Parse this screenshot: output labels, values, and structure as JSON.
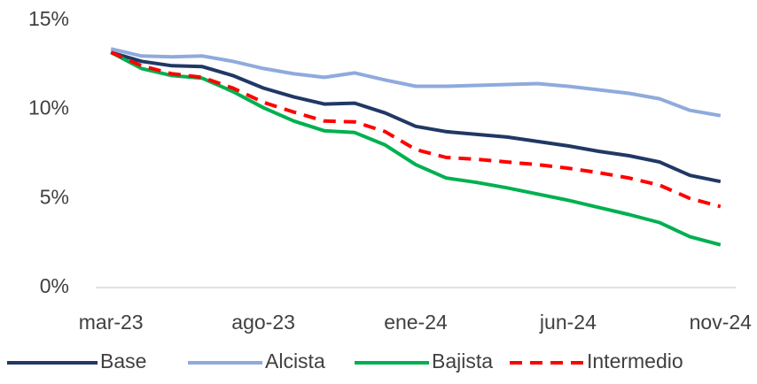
{
  "chart_data": {
    "type": "line",
    "categories": [
      "mar-23",
      null,
      null,
      null,
      null,
      "ago-23",
      null,
      null,
      null,
      null,
      "ene-24",
      null,
      null,
      null,
      null,
      "jun-24",
      null,
      null,
      null,
      null,
      "nov-24"
    ],
    "series": [
      {
        "name": "Base",
        "color": "#203864",
        "dash": false,
        "values": [
          13.2,
          12.7,
          12.45,
          12.4,
          11.9,
          11.2,
          10.7,
          10.3,
          10.35,
          9.8,
          9.05,
          8.75,
          8.6,
          8.45,
          8.2,
          7.95,
          7.65,
          7.4,
          7.05,
          6.3,
          5.95
        ]
      },
      {
        "name": "Alcista",
        "color": "#8faadc",
        "dash": false,
        "values": [
          13.4,
          13.0,
          12.95,
          13.0,
          12.7,
          12.3,
          12.0,
          11.8,
          12.05,
          11.65,
          11.3,
          11.3,
          11.35,
          11.4,
          11.45,
          11.3,
          11.1,
          10.9,
          10.6,
          9.95,
          9.65
        ]
      },
      {
        "name": "Bajista",
        "color": "#00b050",
        "dash": false,
        "values": [
          13.2,
          12.3,
          11.9,
          11.75,
          11.0,
          10.1,
          9.35,
          8.8,
          8.7,
          8.0,
          6.9,
          6.15,
          5.9,
          5.6,
          5.25,
          4.9,
          4.5,
          4.1,
          3.65,
          2.85,
          2.4
        ]
      },
      {
        "name": "Intermedio",
        "color": "#ff0000",
        "dash": true,
        "values": [
          13.2,
          12.45,
          12.0,
          11.8,
          11.2,
          10.4,
          9.85,
          9.35,
          9.3,
          8.75,
          7.75,
          7.3,
          7.2,
          7.05,
          6.9,
          6.7,
          6.45,
          6.15,
          5.75,
          5.0,
          4.55
        ]
      }
    ],
    "ylim": [
      0,
      15
    ],
    "yticks": [
      {
        "value": 0,
        "label": "0%"
      },
      {
        "value": 5,
        "label": "5%"
      },
      {
        "value": 10,
        "label": "10%"
      },
      {
        "value": 15,
        "label": "15%"
      }
    ],
    "grid": false,
    "legend": "bottom"
  }
}
